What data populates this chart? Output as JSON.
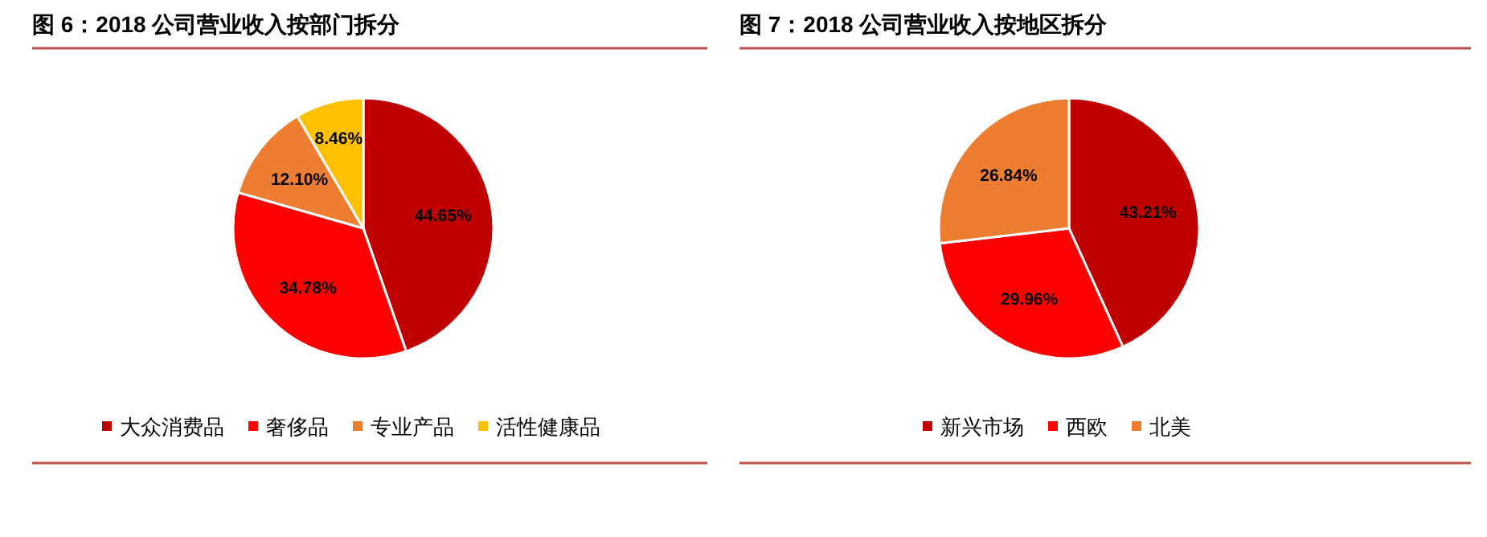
{
  "chart_data": [
    {
      "type": "pie",
      "title": "图 6：2018 公司营业收入按部门拆分",
      "categories": [
        "大众消费品",
        "奢侈品",
        "专业产品",
        "活性健康品"
      ],
      "values": [
        44.65,
        34.78,
        12.1,
        8.46
      ],
      "value_labels": [
        "44.65%",
        "34.78%",
        "12.10%",
        "8.46%"
      ],
      "colors": [
        "#c00000",
        "#ff0000",
        "#ed7d31",
        "#ffc000"
      ],
      "legend": "bottom"
    },
    {
      "type": "pie",
      "title": "图 7：2018 公司营业收入按地区拆分",
      "categories": [
        "新兴市场",
        "西欧",
        "北美"
      ],
      "values": [
        43.21,
        29.96,
        26.84
      ],
      "value_labels": [
        "43.21%",
        "29.96%",
        "26.84%"
      ],
      "colors": [
        "#c00000",
        "#ff0000",
        "#ed7d31"
      ],
      "legend": "bottom"
    }
  ]
}
